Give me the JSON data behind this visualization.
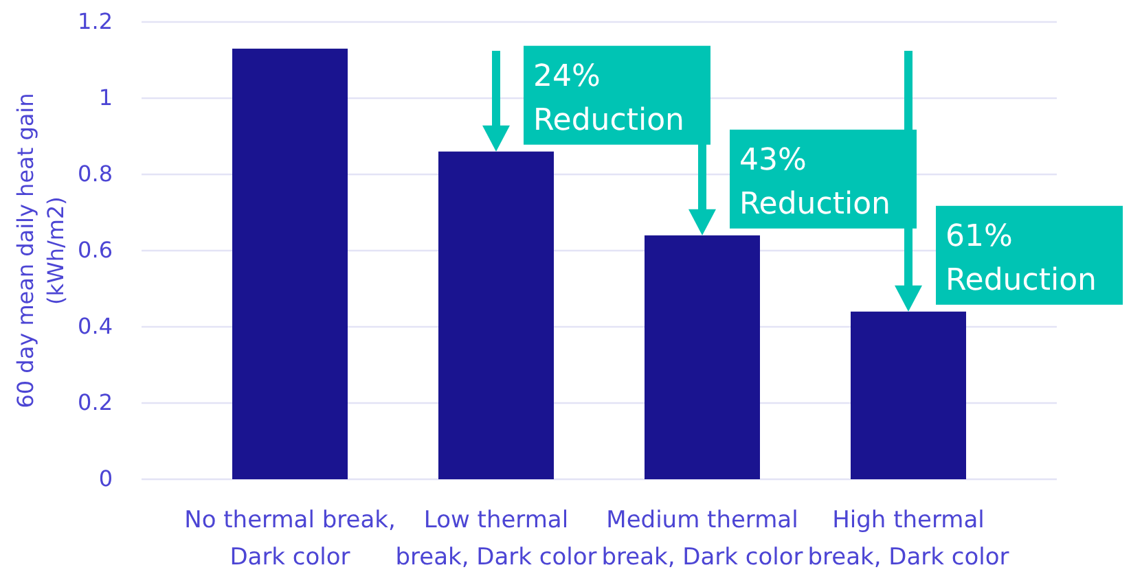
{
  "chart_data": {
    "type": "bar",
    "ylabel": "60 day mean daily heat gain\n(kWh/m2)",
    "categories": [
      "No thermal break,\nDark color",
      "Low thermal\nbreak, Dark color",
      "Medium thermal\nbreak, Dark color",
      "High thermal\nbreak, Dark color"
    ],
    "values": [
      1.13,
      0.86,
      0.64,
      0.44
    ],
    "color": "#1a1490",
    "ylim": [
      0,
      1.2
    ],
    "yticks": [
      0,
      0.2,
      0.4,
      0.6,
      0.8,
      1,
      1.2
    ],
    "grid": "y",
    "annotations": [
      {
        "text": "24%\nReduction",
        "x": "Low thermal\nbreak, Dark color",
        "y": 0.86
      },
      {
        "text": "43%\nReduction",
        "x": "Medium thermal\nbreak, Dark color",
        "y": 0.64
      },
      {
        "text": "61%\nReduction",
        "x": "High thermal\nbreak, Dark color",
        "y": 0.44
      }
    ]
  }
}
